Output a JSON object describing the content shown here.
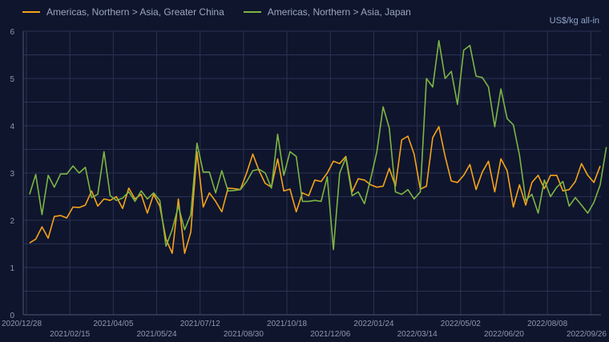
{
  "chart_data": {
    "type": "line",
    "title": "",
    "unit_label": "US$/kg all-in",
    "xlabel": "",
    "ylabel": "US$/kg all-in",
    "ylim": [
      0,
      6
    ],
    "yticks": [
      "0",
      "1",
      "2",
      "3",
      "4",
      "5",
      "6"
    ],
    "grid": true,
    "legend_position": "top-left",
    "x_start": "2020/12/28",
    "x_tick_labels": [
      "2020/12/28",
      "2021/02/15",
      "2021/04/05",
      "2021/05/24",
      "2021/07/12",
      "2021/08/30",
      "2021/10/18",
      "2021/12/06",
      "2022/01/24",
      "2022/03/14",
      "2022/05/02",
      "2022/06/20",
      "2022/08/08",
      "2022/09/26"
    ],
    "series": [
      {
        "name": "Americas, Northern > Asia, Greater China",
        "color": "#f5a31a",
        "values": [
          1.52,
          1.6,
          1.86,
          1.62,
          2.08,
          2.1,
          2.05,
          2.28,
          2.27,
          2.32,
          2.62,
          2.3,
          2.45,
          2.42,
          2.5,
          2.25,
          2.68,
          2.45,
          2.55,
          2.15,
          2.55,
          2.3,
          1.6,
          1.3,
          2.45,
          1.3,
          1.75,
          3.45,
          2.28,
          2.58,
          2.4,
          2.18,
          2.68,
          2.67,
          2.65,
          3.0,
          3.4,
          3.05,
          2.78,
          2.7,
          3.3,
          2.62,
          2.66,
          2.18,
          2.58,
          2.52,
          2.85,
          2.82,
          3.0,
          3.25,
          3.2,
          3.35,
          2.6,
          2.88,
          2.85,
          2.75,
          2.7,
          2.72,
          3.1,
          2.72,
          3.7,
          3.78,
          3.4,
          2.66,
          2.72,
          3.75,
          3.98,
          3.35,
          2.83,
          2.8,
          2.95,
          3.18,
          2.65,
          3.02,
          3.25,
          2.6,
          3.3,
          3.05,
          2.28,
          2.75,
          2.32,
          2.8,
          2.95,
          2.67,
          2.95,
          2.95,
          2.62,
          2.65,
          2.82,
          3.2,
          2.95,
          2.8,
          3.15
        ]
      },
      {
        "name": "Americas, Northern > Asia, Japan",
        "color": "#7db544",
        "values": [
          2.55,
          2.97,
          2.12,
          2.95,
          2.7,
          2.98,
          2.98,
          3.15,
          3.0,
          3.12,
          2.48,
          2.55,
          3.45,
          2.52,
          2.42,
          2.47,
          2.6,
          2.4,
          2.62,
          2.45,
          2.58,
          2.42,
          1.45,
          1.8,
          2.3,
          1.8,
          2.12,
          3.63,
          3.02,
          3.02,
          2.58,
          3.05,
          2.62,
          2.63,
          2.65,
          2.82,
          3.05,
          3.08,
          3.0,
          2.68,
          3.82,
          2.95,
          3.45,
          3.35,
          2.4,
          2.4,
          2.42,
          2.4,
          2.92,
          1.38,
          3.0,
          3.32,
          2.52,
          2.6,
          2.35,
          2.88,
          3.45,
          4.4,
          3.95,
          2.6,
          2.55,
          2.65,
          2.45,
          2.6,
          5.0,
          4.82,
          5.8,
          5.0,
          5.15,
          4.45,
          5.6,
          5.7,
          5.05,
          5.02,
          4.82,
          3.98,
          4.78,
          4.15,
          4.02,
          3.38,
          2.42,
          2.55,
          2.15,
          2.85,
          2.5,
          2.7,
          2.82,
          2.3,
          2.48,
          2.32,
          2.15,
          2.38,
          2.75,
          3.55
        ]
      }
    ]
  }
}
